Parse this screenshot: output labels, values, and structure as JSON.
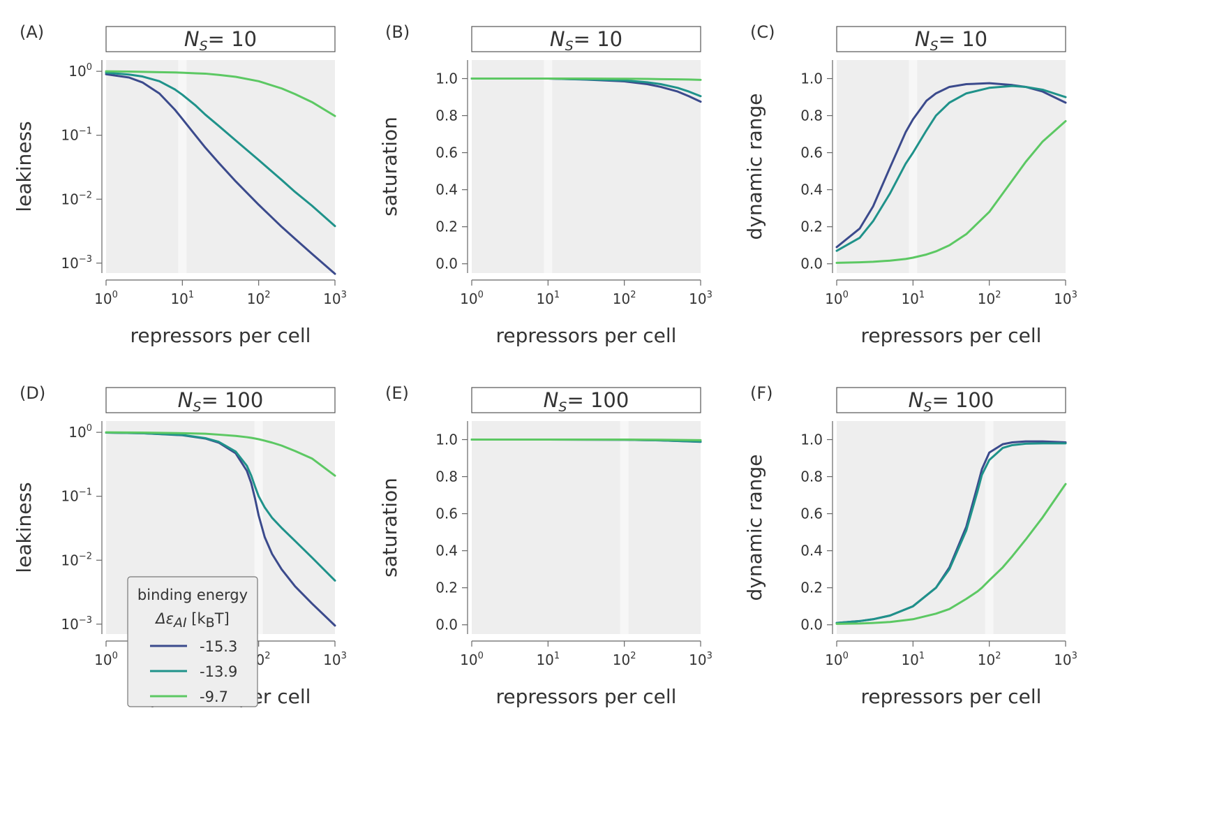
{
  "series_styles": [
    {
      "name": "-15.3",
      "color": "#3b4a8c"
    },
    {
      "name": "-13.9",
      "color": "#1f928a"
    },
    {
      "name": "-9.7",
      "color": "#5cc863"
    }
  ],
  "legend": {
    "title_line1": "binding energy",
    "title_line2": "Δε",
    "title_sub": "AI",
    "title_unit_open": "[k",
    "title_unit_sub": "B",
    "title_unit_close": "T]",
    "entries": [
      "-15.3",
      "-13.9",
      "-9.7"
    ]
  },
  "chart_data": [
    {
      "panel": "(A)",
      "type": "line",
      "title": "N",
      "title_sub": "S",
      "title_rest": "= 10",
      "xlabel": "repressors per cell",
      "ylabel": "leakiness",
      "x_scale": "log",
      "y_scale": "log",
      "xlim": [
        1,
        1000
      ],
      "ylim": [
        0.0007,
        1.5
      ],
      "xticks": [
        {
          "base": "10",
          "exp": "0"
        },
        {
          "base": "10",
          "exp": "1"
        },
        {
          "base": "10",
          "exp": "2"
        },
        {
          "base": "10",
          "exp": "3"
        }
      ],
      "yticks": [
        {
          "v": 1,
          "base": "10",
          "exp": "0"
        },
        {
          "v": 0.1,
          "base": "10",
          "exp": "−1"
        },
        {
          "v": 0.01,
          "base": "10",
          "exp": "−2"
        },
        {
          "v": 0.001,
          "base": "10",
          "exp": "−3"
        }
      ],
      "highlight_x": 10,
      "x": [
        1,
        2,
        3,
        5,
        8,
        10,
        15,
        20,
        30,
        50,
        100,
        200,
        300,
        500,
        1000
      ],
      "series": [
        {
          "values": [
            0.9,
            0.8,
            0.67,
            0.45,
            0.25,
            0.18,
            0.098,
            0.064,
            0.037,
            0.019,
            0.0082,
            0.0037,
            0.0024,
            0.0014,
            0.00068
          ]
        },
        {
          "values": [
            0.95,
            0.89,
            0.83,
            0.7,
            0.52,
            0.43,
            0.29,
            0.21,
            0.14,
            0.083,
            0.041,
            0.02,
            0.013,
            0.0079,
            0.0038
          ]
        },
        {
          "values": [
            1.0,
            0.99,
            0.98,
            0.97,
            0.96,
            0.95,
            0.93,
            0.92,
            0.88,
            0.82,
            0.7,
            0.54,
            0.44,
            0.33,
            0.2
          ]
        }
      ]
    },
    {
      "panel": "(B)",
      "type": "line",
      "title": "N",
      "title_sub": "S",
      "title_rest": "= 10",
      "xlabel": "repressors per cell",
      "ylabel": "saturation",
      "x_scale": "log",
      "y_scale": "linear",
      "xlim": [
        1,
        1000
      ],
      "ylim": [
        -0.05,
        1.1
      ],
      "xticks": [
        {
          "base": "10",
          "exp": "0"
        },
        {
          "base": "10",
          "exp": "1"
        },
        {
          "base": "10",
          "exp": "2"
        },
        {
          "base": "10",
          "exp": "3"
        }
      ],
      "yticks": [
        {
          "v": 0.0,
          "label": "0.0"
        },
        {
          "v": 0.2,
          "label": "0.2"
        },
        {
          "v": 0.4,
          "label": "0.4"
        },
        {
          "v": 0.6,
          "label": "0.6"
        },
        {
          "v": 0.8,
          "label": "0.8"
        },
        {
          "v": 1.0,
          "label": "1.0"
        }
      ],
      "highlight_x": 10,
      "x": [
        1,
        3,
        10,
        30,
        100,
        200,
        300,
        500,
        700,
        1000
      ],
      "series": [
        {
          "values": [
            1.0,
            1.0,
            1.0,
            0.995,
            0.985,
            0.97,
            0.955,
            0.93,
            0.905,
            0.875
          ]
        },
        {
          "values": [
            1.0,
            1.0,
            1.0,
            0.996,
            0.99,
            0.98,
            0.97,
            0.95,
            0.93,
            0.905
          ]
        },
        {
          "values": [
            1.0,
            1.0,
            1.0,
            1.0,
            0.999,
            0.998,
            0.997,
            0.996,
            0.995,
            0.993
          ]
        }
      ]
    },
    {
      "panel": "(C)",
      "type": "line",
      "title": "N",
      "title_sub": "S",
      "title_rest": "= 10",
      "xlabel": "repressors per cell",
      "ylabel": "dynamic range",
      "x_scale": "log",
      "y_scale": "linear",
      "xlim": [
        1,
        1000
      ],
      "ylim": [
        -0.05,
        1.1
      ],
      "xticks": [
        {
          "base": "10",
          "exp": "0"
        },
        {
          "base": "10",
          "exp": "1"
        },
        {
          "base": "10",
          "exp": "2"
        },
        {
          "base": "10",
          "exp": "3"
        }
      ],
      "yticks": [
        {
          "v": 0.0,
          "label": "0.0"
        },
        {
          "v": 0.2,
          "label": "0.2"
        },
        {
          "v": 0.4,
          "label": "0.4"
        },
        {
          "v": 0.6,
          "label": "0.6"
        },
        {
          "v": 0.8,
          "label": "0.8"
        },
        {
          "v": 1.0,
          "label": "1.0"
        }
      ],
      "highlight_x": 10,
      "x": [
        1,
        2,
        3,
        5,
        8,
        10,
        15,
        20,
        30,
        50,
        100,
        200,
        300,
        500,
        1000
      ],
      "series": [
        {
          "values": [
            0.09,
            0.19,
            0.31,
            0.52,
            0.71,
            0.78,
            0.88,
            0.92,
            0.955,
            0.97,
            0.975,
            0.965,
            0.955,
            0.93,
            0.87
          ]
        },
        {
          "values": [
            0.07,
            0.14,
            0.23,
            0.38,
            0.54,
            0.6,
            0.72,
            0.8,
            0.87,
            0.92,
            0.95,
            0.96,
            0.955,
            0.94,
            0.9
          ]
        },
        {
          "values": [
            0.005,
            0.008,
            0.011,
            0.017,
            0.026,
            0.033,
            0.05,
            0.067,
            0.1,
            0.16,
            0.28,
            0.45,
            0.55,
            0.66,
            0.77
          ]
        }
      ]
    },
    {
      "panel": "(D)",
      "type": "line",
      "title": "N",
      "title_sub": "S",
      "title_rest": "= 100",
      "xlabel": "repressors per cell",
      "ylabel": "leakiness",
      "x_scale": "log",
      "y_scale": "log",
      "xlim": [
        1,
        1000
      ],
      "ylim": [
        0.0007,
        1.5
      ],
      "xticks": [
        {
          "base": "10",
          "exp": "0"
        },
        {
          "base": "10",
          "exp": "1"
        },
        {
          "base": "10",
          "exp": "2"
        },
        {
          "base": "10",
          "exp": "3"
        }
      ],
      "yticks": [
        {
          "v": 1,
          "base": "10",
          "exp": "0"
        },
        {
          "v": 0.1,
          "base": "10",
          "exp": "−1"
        },
        {
          "v": 0.01,
          "base": "10",
          "exp": "−2"
        },
        {
          "v": 0.001,
          "base": "10",
          "exp": "−3"
        }
      ],
      "highlight_x": 100,
      "x": [
        1,
        3,
        10,
        20,
        30,
        50,
        70,
        80,
        90,
        100,
        120,
        150,
        200,
        300,
        500,
        1000
      ],
      "series": [
        {
          "values": [
            0.99,
            0.97,
            0.9,
            0.8,
            0.69,
            0.47,
            0.25,
            0.16,
            0.09,
            0.05,
            0.023,
            0.0125,
            0.0072,
            0.0039,
            0.0021,
            0.00095
          ]
        },
        {
          "values": [
            0.99,
            0.97,
            0.91,
            0.81,
            0.71,
            0.5,
            0.3,
            0.21,
            0.14,
            0.1,
            0.067,
            0.046,
            0.032,
            0.02,
            0.011,
            0.0048
          ]
        },
        {
          "values": [
            1.0,
            0.99,
            0.97,
            0.95,
            0.92,
            0.88,
            0.84,
            0.82,
            0.8,
            0.78,
            0.74,
            0.69,
            0.62,
            0.51,
            0.39,
            0.21
          ]
        }
      ]
    },
    {
      "panel": "(E)",
      "type": "line",
      "title": "N",
      "title_sub": "S",
      "title_rest": "= 100",
      "xlabel": "repressors per cell",
      "ylabel": "saturation",
      "x_scale": "log",
      "y_scale": "linear",
      "xlim": [
        1,
        1000
      ],
      "ylim": [
        -0.05,
        1.1
      ],
      "xticks": [
        {
          "base": "10",
          "exp": "0"
        },
        {
          "base": "10",
          "exp": "1"
        },
        {
          "base": "10",
          "exp": "2"
        },
        {
          "base": "10",
          "exp": "3"
        }
      ],
      "yticks": [
        {
          "v": 0.0,
          "label": "0.0"
        },
        {
          "v": 0.2,
          "label": "0.2"
        },
        {
          "v": 0.4,
          "label": "0.4"
        },
        {
          "v": 0.6,
          "label": "0.6"
        },
        {
          "v": 0.8,
          "label": "0.8"
        },
        {
          "v": 1.0,
          "label": "1.0"
        }
      ],
      "highlight_x": 100,
      "x": [
        1,
        10,
        100,
        300,
        1000
      ],
      "series": [
        {
          "values": [
            1.0,
            1.0,
            0.999,
            0.996,
            0.988
          ]
        },
        {
          "values": [
            1.0,
            1.0,
            0.999,
            0.996,
            0.989
          ]
        },
        {
          "values": [
            1.0,
            1.0,
            1.0,
            0.999,
            0.997
          ]
        }
      ]
    },
    {
      "panel": "(F)",
      "type": "line",
      "title": "N",
      "title_sub": "S",
      "title_rest": "= 100",
      "xlabel": "repressors per cell",
      "ylabel": "dynamic range",
      "x_scale": "log",
      "y_scale": "linear",
      "xlim": [
        1,
        1000
      ],
      "ylim": [
        -0.05,
        1.1
      ],
      "xticks": [
        {
          "base": "10",
          "exp": "0"
        },
        {
          "base": "10",
          "exp": "1"
        },
        {
          "base": "10",
          "exp": "2"
        },
        {
          "base": "10",
          "exp": "3"
        }
      ],
      "yticks": [
        {
          "v": 0.0,
          "label": "0.0"
        },
        {
          "v": 0.2,
          "label": "0.2"
        },
        {
          "v": 0.4,
          "label": "0.4"
        },
        {
          "v": 0.6,
          "label": "0.6"
        },
        {
          "v": 0.8,
          "label": "0.8"
        },
        {
          "v": 1.0,
          "label": "1.0"
        }
      ],
      "highlight_x": 100,
      "x": [
        1,
        2,
        3,
        5,
        10,
        20,
        30,
        50,
        70,
        80,
        100,
        150,
        200,
        300,
        500,
        1000
      ],
      "series": [
        {
          "values": [
            0.01,
            0.02,
            0.03,
            0.05,
            0.1,
            0.2,
            0.31,
            0.53,
            0.75,
            0.84,
            0.93,
            0.975,
            0.985,
            0.99,
            0.99,
            0.985
          ]
        },
        {
          "values": [
            0.01,
            0.02,
            0.03,
            0.05,
            0.1,
            0.2,
            0.3,
            0.51,
            0.72,
            0.81,
            0.89,
            0.955,
            0.97,
            0.978,
            0.98,
            0.98
          ]
        },
        {
          "values": [
            0.005,
            0.007,
            0.01,
            0.015,
            0.03,
            0.06,
            0.085,
            0.14,
            0.18,
            0.2,
            0.24,
            0.31,
            0.37,
            0.46,
            0.58,
            0.76
          ]
        }
      ]
    }
  ]
}
